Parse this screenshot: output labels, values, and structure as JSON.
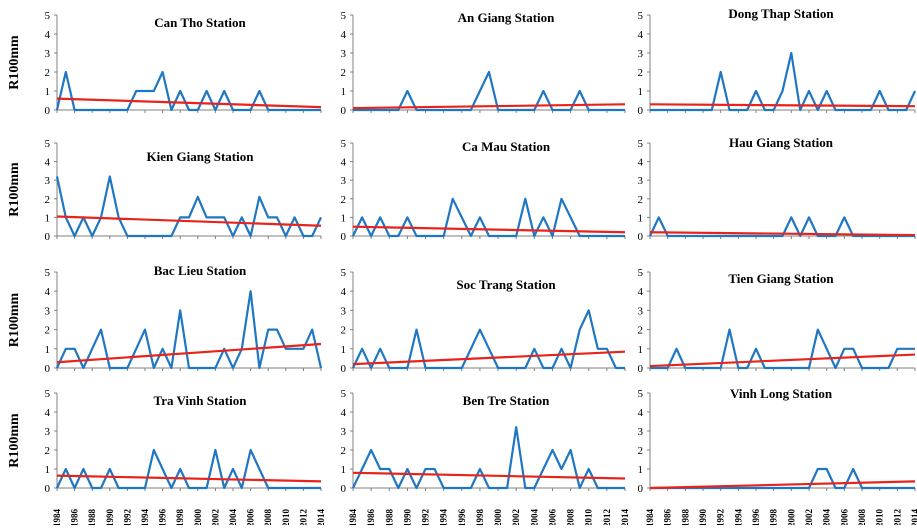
{
  "figure": {
    "ylabel": "R100mm",
    "year_ticks": [
      "1984",
      "1986",
      "1988",
      "1990",
      "1992",
      "1994",
      "1996",
      "1998",
      "2000",
      "2002",
      "2004",
      "2006",
      "2008",
      "2010",
      "2012",
      "2014"
    ],
    "line_color": "#1f77c4",
    "trend_color": "#e8231b",
    "axis_color": "#808080"
  },
  "chart_data": [
    {
      "type": "line",
      "title": "Can Tho Station",
      "xlabel": "",
      "ylabel": "R100mm",
      "xlim": [
        1984,
        2014
      ],
      "ylim": [
        0,
        5
      ],
      "y_ticks": [
        "0",
        "1",
        "2",
        "3",
        "4",
        "5"
      ],
      "x": [
        1984,
        1985,
        1986,
        1987,
        1988,
        1989,
        1990,
        1991,
        1992,
        1993,
        1994,
        1995,
        1996,
        1997,
        1998,
        1999,
        2000,
        2001,
        2002,
        2003,
        2004,
        2005,
        2006,
        2007,
        2008,
        2009,
        2010,
        2011,
        2012,
        2013,
        2014
      ],
      "series": [
        {
          "values": [
            0,
            2,
            0,
            0,
            0,
            0,
            0,
            0,
            0,
            1,
            1,
            1,
            2,
            0,
            1,
            0,
            0,
            1,
            0,
            1,
            0,
            0,
            0,
            1,
            0,
            0,
            0,
            0,
            0,
            0,
            0
          ]
        }
      ],
      "trend": [
        0.6,
        0.15
      ]
    },
    {
      "type": "line",
      "title": "An Giang Station",
      "xlabel": "",
      "ylabel": "",
      "xlim": [
        1984,
        2014
      ],
      "ylim": [
        0,
        5
      ],
      "y_ticks": [
        "0",
        "1",
        "2",
        "3",
        "4",
        "5"
      ],
      "x": [
        1984,
        1985,
        1986,
        1987,
        1988,
        1989,
        1990,
        1991,
        1992,
        1993,
        1994,
        1995,
        1996,
        1997,
        1998,
        1999,
        2000,
        2001,
        2002,
        2003,
        2004,
        2005,
        2006,
        2007,
        2008,
        2009,
        2010,
        2011,
        2012,
        2013,
        2014
      ],
      "series": [
        {
          "values": [
            0,
            0,
            0,
            0,
            0,
            0,
            1,
            0,
            0,
            0,
            0,
            0,
            0,
            0,
            1,
            2,
            0,
            0,
            0,
            0,
            0,
            1,
            0,
            0,
            0,
            1,
            0,
            0,
            0,
            0,
            0
          ]
        }
      ],
      "trend": [
        0.1,
        0.3
      ]
    },
    {
      "type": "line",
      "title": "Dong Thap Station",
      "xlabel": "",
      "ylabel": "",
      "xlim": [
        1984,
        2014
      ],
      "ylim": [
        0,
        5
      ],
      "y_ticks": [
        "0",
        "1",
        "2",
        "3",
        "4",
        "5"
      ],
      "x": [
        1984,
        1985,
        1986,
        1987,
        1988,
        1989,
        1990,
        1991,
        1992,
        1993,
        1994,
        1995,
        1996,
        1997,
        1998,
        1999,
        2000,
        2001,
        2002,
        2003,
        2004,
        2005,
        2006,
        2007,
        2008,
        2009,
        2010,
        2011,
        2012,
        2013,
        2014
      ],
      "series": [
        {
          "values": [
            0,
            0,
            0,
            0,
            0,
            0,
            0,
            0,
            2,
            0,
            0,
            0,
            1,
            0,
            0,
            1,
            3,
            0,
            1,
            0,
            1,
            0,
            0,
            0,
            0,
            0,
            1,
            0,
            0,
            0,
            1
          ]
        }
      ],
      "trend": [
        0.3,
        0.2
      ]
    },
    {
      "type": "line",
      "title": "Kien Giang Station",
      "xlabel": "",
      "ylabel": "R100mm",
      "xlim": [
        1984,
        2014
      ],
      "ylim": [
        0,
        5
      ],
      "y_ticks": [
        "0",
        "1",
        "2",
        "3",
        "4",
        "5"
      ],
      "x": [
        1984,
        1985,
        1986,
        1987,
        1988,
        1989,
        1990,
        1991,
        1992,
        1993,
        1994,
        1995,
        1996,
        1997,
        1998,
        1999,
        2000,
        2001,
        2002,
        2003,
        2004,
        2005,
        2006,
        2007,
        2008,
        2009,
        2010,
        2011,
        2012,
        2013,
        2014
      ],
      "series": [
        {
          "values": [
            3.2,
            1,
            0,
            1,
            0,
            1,
            3.2,
            1,
            0,
            0,
            0,
            0,
            0,
            0,
            1,
            1,
            2.1,
            1,
            1,
            1,
            0,
            1,
            0,
            2.1,
            1,
            1,
            0,
            1,
            0,
            0,
            1
          ]
        }
      ],
      "trend": [
        1.05,
        0.55
      ]
    },
    {
      "type": "line",
      "title": "Ca Mau Station",
      "xlabel": "",
      "ylabel": "",
      "xlim": [
        1984,
        2014
      ],
      "ylim": [
        0,
        5
      ],
      "y_ticks": [
        "0",
        "1",
        "2",
        "3",
        "4",
        "5"
      ],
      "x": [
        1984,
        1985,
        1986,
        1987,
        1988,
        1989,
        1990,
        1991,
        1992,
        1993,
        1994,
        1995,
        1996,
        1997,
        1998,
        1999,
        2000,
        2001,
        2002,
        2003,
        2004,
        2005,
        2006,
        2007,
        2008,
        2009,
        2010,
        2011,
        2012,
        2013,
        2014
      ],
      "series": [
        {
          "values": [
            0,
            1,
            0,
            1,
            0,
            0,
            1,
            0,
            0,
            0,
            0,
            2,
            1,
            0,
            1,
            0,
            0,
            0,
            0,
            2,
            0,
            1,
            0,
            2,
            1,
            0,
            0,
            0,
            0,
            0,
            0
          ]
        }
      ],
      "trend": [
        0.5,
        0.2
      ]
    },
    {
      "type": "line",
      "title": "Hau Giang Station",
      "xlabel": "",
      "ylabel": "",
      "xlim": [
        1984,
        2014
      ],
      "ylim": [
        0,
        5
      ],
      "y_ticks": [
        "0",
        "1",
        "2",
        "3",
        "4",
        "5"
      ],
      "x": [
        1984,
        1985,
        1986,
        1987,
        1988,
        1989,
        1990,
        1991,
        1992,
        1993,
        1994,
        1995,
        1996,
        1997,
        1998,
        1999,
        2000,
        2001,
        2002,
        2003,
        2004,
        2005,
        2006,
        2007,
        2008,
        2009,
        2010,
        2011,
        2012,
        2013,
        2014
      ],
      "series": [
        {
          "values": [
            0,
            1,
            0,
            0,
            0,
            0,
            0,
            0,
            0,
            0,
            0,
            0,
            0,
            0,
            0,
            0,
            1,
            0,
            1,
            0,
            0,
            0,
            1,
            0,
            0,
            0,
            0,
            0,
            0,
            0,
            0
          ]
        }
      ],
      "trend": [
        0.2,
        0.05
      ]
    },
    {
      "type": "line",
      "title": "Bac Lieu Station",
      "xlabel": "",
      "ylabel": "R100mm",
      "xlim": [
        1984,
        2014
      ],
      "ylim": [
        0,
        5
      ],
      "y_ticks": [
        "0",
        "1",
        "2",
        "3",
        "4",
        "5"
      ],
      "x": [
        1984,
        1985,
        1986,
        1987,
        1988,
        1989,
        1990,
        1991,
        1992,
        1993,
        1994,
        1995,
        1996,
        1997,
        1998,
        1999,
        2000,
        2001,
        2002,
        2003,
        2004,
        2005,
        2006,
        2007,
        2008,
        2009,
        2010,
        2011,
        2012,
        2013,
        2014
      ],
      "series": [
        {
          "values": [
            0,
            1,
            1,
            0,
            1,
            2,
            0,
            0,
            0,
            1,
            2,
            0,
            1,
            0,
            3,
            0,
            0,
            0,
            0,
            1,
            0,
            1,
            4,
            0,
            2,
            2,
            1,
            1,
            1,
            2,
            0
          ]
        }
      ],
      "trend": [
        0.3,
        1.25
      ]
    },
    {
      "type": "line",
      "title": "Soc Trang Station",
      "xlabel": "",
      "ylabel": "",
      "xlim": [
        1984,
        2014
      ],
      "ylim": [
        0,
        5
      ],
      "y_ticks": [
        "0",
        "1",
        "2",
        "3",
        "4",
        "5"
      ],
      "x": [
        1984,
        1985,
        1986,
        1987,
        1988,
        1989,
        1990,
        1991,
        1992,
        1993,
        1994,
        1995,
        1996,
        1997,
        1998,
        1999,
        2000,
        2001,
        2002,
        2003,
        2004,
        2005,
        2006,
        2007,
        2008,
        2009,
        2010,
        2011,
        2012,
        2013,
        2014
      ],
      "series": [
        {
          "values": [
            0,
            1,
            0,
            1,
            0,
            0,
            0,
            2,
            0,
            0,
            0,
            0,
            0,
            1,
            2,
            1,
            0,
            0,
            0,
            0,
            1,
            0,
            0,
            1,
            0,
            2,
            3,
            1,
            1,
            0,
            0
          ]
        }
      ],
      "trend": [
        0.2,
        0.85
      ]
    },
    {
      "type": "line",
      "title": "Tien Giang Station",
      "xlabel": "",
      "ylabel": "",
      "xlim": [
        1984,
        2014
      ],
      "ylim": [
        0,
        5
      ],
      "y_ticks": [
        "0",
        "1",
        "2",
        "3",
        "4",
        "5"
      ],
      "x": [
        1984,
        1985,
        1986,
        1987,
        1988,
        1989,
        1990,
        1991,
        1992,
        1993,
        1994,
        1995,
        1996,
        1997,
        1998,
        1999,
        2000,
        2001,
        2002,
        2003,
        2004,
        2005,
        2006,
        2007,
        2008,
        2009,
        2010,
        2011,
        2012,
        2013,
        2014
      ],
      "series": [
        {
          "values": [
            0,
            0,
            0,
            1,
            0,
            0,
            0,
            0,
            0,
            2,
            0,
            0,
            1,
            0,
            0,
            0,
            0,
            0,
            0,
            2,
            1,
            0,
            1,
            1,
            0,
            0,
            0,
            0,
            1,
            1,
            1
          ]
        }
      ],
      "trend": [
        0.1,
        0.7
      ]
    },
    {
      "type": "line",
      "title": "Tra Vinh Station",
      "xlabel": "",
      "ylabel": "R100mm",
      "xlim": [
        1984,
        2014
      ],
      "ylim": [
        0,
        5
      ],
      "y_ticks": [
        "0",
        "1",
        "2",
        "3",
        "4",
        "5"
      ],
      "x": [
        1984,
        1985,
        1986,
        1987,
        1988,
        1989,
        1990,
        1991,
        1992,
        1993,
        1994,
        1995,
        1996,
        1997,
        1998,
        1999,
        2000,
        2001,
        2002,
        2003,
        2004,
        2005,
        2006,
        2007,
        2008,
        2009,
        2010,
        2011,
        2012,
        2013,
        2014
      ],
      "series": [
        {
          "values": [
            0,
            1,
            0,
            1,
            0,
            0,
            1,
            0,
            0,
            0,
            0,
            2,
            1,
            0,
            1,
            0,
            0,
            0,
            2,
            0,
            1,
            0,
            2,
            1,
            0,
            0,
            0,
            0,
            0,
            0,
            0
          ]
        }
      ],
      "trend": [
        0.65,
        0.35
      ]
    },
    {
      "type": "line",
      "title": "Ben Tre Station",
      "xlabel": "",
      "ylabel": "",
      "xlim": [
        1984,
        2014
      ],
      "ylim": [
        0,
        5
      ],
      "y_ticks": [
        "0",
        "1",
        "2",
        "3",
        "4",
        "5"
      ],
      "x": [
        1984,
        1985,
        1986,
        1987,
        1988,
        1989,
        1990,
        1991,
        1992,
        1993,
        1994,
        1995,
        1996,
        1997,
        1998,
        1999,
        2000,
        2001,
        2002,
        2003,
        2004,
        2005,
        2006,
        2007,
        2008,
        2009,
        2010,
        2011,
        2012,
        2013,
        2014
      ],
      "series": [
        {
          "values": [
            0,
            1,
            2,
            1,
            1,
            0,
            1,
            0,
            1,
            1,
            0,
            0,
            0,
            0,
            1,
            0,
            0,
            0,
            3.2,
            0,
            0,
            1,
            2,
            1,
            2,
            0,
            1,
            0,
            0,
            0,
            0
          ]
        }
      ],
      "trend": [
        0.8,
        0.5
      ]
    },
    {
      "type": "line",
      "title": "Vinh Long Station",
      "xlabel": "",
      "ylabel": "",
      "xlim": [
        1984,
        2014
      ],
      "ylim": [
        0,
        5
      ],
      "y_ticks": [
        "0",
        "1",
        "2",
        "3",
        "4",
        "5"
      ],
      "x": [
        1984,
        1985,
        1986,
        1987,
        1988,
        1989,
        1990,
        1991,
        1992,
        1993,
        1994,
        1995,
        1996,
        1997,
        1998,
        1999,
        2000,
        2001,
        2002,
        2003,
        2004,
        2005,
        2006,
        2007,
        2008,
        2009,
        2010,
        2011,
        2012,
        2013,
        2014
      ],
      "series": [
        {
          "values": [
            0,
            0,
            0,
            0,
            0,
            0,
            0,
            0,
            0,
            0,
            0,
            0,
            0,
            0,
            0,
            0,
            0,
            0,
            0,
            1,
            1,
            0,
            0,
            1,
            0,
            0,
            0,
            0,
            0,
            0,
            0
          ]
        }
      ],
      "trend": [
        0.0,
        0.35
      ]
    }
  ]
}
